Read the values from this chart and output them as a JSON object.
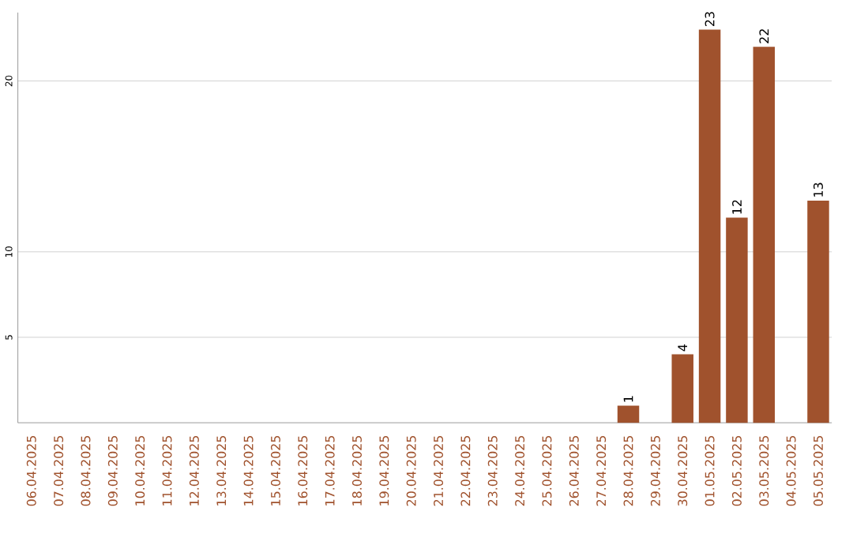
{
  "chart_data": {
    "type": "bar",
    "categories": [
      "06.04.2025",
      "07.04.2025",
      "08.04.2025",
      "09.04.2025",
      "10.04.2025",
      "11.04.2025",
      "12.04.2025",
      "13.04.2025",
      "14.04.2025",
      "15.04.2025",
      "16.04.2025",
      "17.04.2025",
      "18.04.2025",
      "19.04.2025",
      "20.04.2025",
      "21.04.2025",
      "22.04.2025",
      "23.04.2025",
      "24.04.2025",
      "25.04.2025",
      "26.04.2025",
      "27.04.2025",
      "28.04.2025",
      "29.04.2025",
      "30.04.2025",
      "01.05.2025",
      "02.05.2025",
      "03.05.2025",
      "04.05.2025",
      "05.05.2025"
    ],
    "values": [
      0,
      0,
      0,
      0,
      0,
      0,
      0,
      0,
      0,
      0,
      0,
      0,
      0,
      0,
      0,
      0,
      0,
      0,
      0,
      0,
      0,
      0,
      1,
      0,
      4,
      23,
      12,
      22,
      0,
      13
    ],
    "value_labels": [
      null,
      null,
      null,
      null,
      null,
      null,
      null,
      null,
      null,
      null,
      null,
      null,
      null,
      null,
      null,
      null,
      null,
      null,
      null,
      null,
      null,
      null,
      "1",
      null,
      "4",
      "23",
      "12",
      "22",
      null,
      "13"
    ],
    "color": "#a0522d",
    "ylim": [
      0,
      24
    ],
    "yticks": [
      5,
      10,
      20
    ],
    "grid": "y"
  }
}
